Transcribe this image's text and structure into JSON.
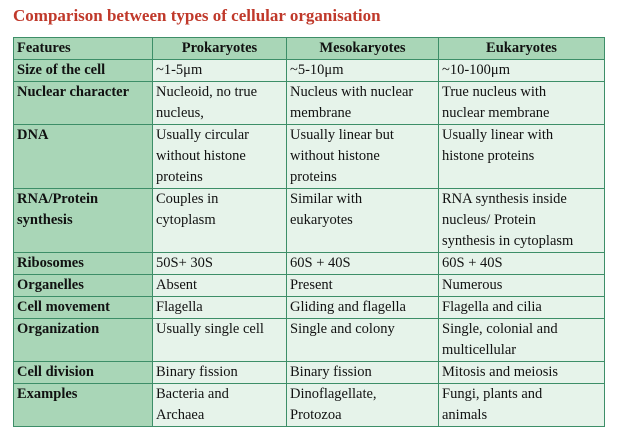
{
  "title": "Comparison between types of cellular organisation",
  "table": {
    "headers": [
      "Features",
      "Prokaryotes",
      "Mesokaryotes",
      "Eukaryotes"
    ],
    "rows": [
      {
        "feature": "Size of the cell",
        "prokaryotes": [
          "~1-5μm"
        ],
        "mesokaryotes": [
          "~5-10μm"
        ],
        "eukaryotes": [
          "~10-100μm"
        ]
      },
      {
        "feature": "Nuclear character",
        "prokaryotes": [
          "Nucleoid, no true",
          "nucleus,"
        ],
        "mesokaryotes": [
          "Nucleus with nuclear",
          "membrane"
        ],
        "eukaryotes": [
          "True nucleus with",
          "nuclear membrane"
        ]
      },
      {
        "feature": "DNA",
        "prokaryotes": [
          "Usually circular",
          "without histone",
          "proteins"
        ],
        "mesokaryotes": [
          "Usually linear but",
          "without histone",
          "proteins"
        ],
        "eukaryotes": [
          "Usually linear with",
          "histone proteins"
        ]
      },
      {
        "feature": [
          "RNA/Protein",
          "synthesis"
        ],
        "prokaryotes": [
          "Couples in",
          "cytoplasm"
        ],
        "mesokaryotes": [
          "Similar with",
          "eukaryotes"
        ],
        "eukaryotes": [
          "RNA synthesis inside",
          "nucleus/ Protein",
          "synthesis in cytoplasm"
        ]
      },
      {
        "feature": "Ribosomes",
        "prokaryotes": [
          "50S+ 30S"
        ],
        "mesokaryotes": [
          "60S + 40S"
        ],
        "eukaryotes": [
          "60S + 40S"
        ]
      },
      {
        "feature": "Organelles",
        "prokaryotes": [
          "Absent"
        ],
        "mesokaryotes": [
          "Present"
        ],
        "eukaryotes": [
          "Numerous"
        ]
      },
      {
        "feature": "Cell movement",
        "prokaryotes": [
          "Flagella"
        ],
        "mesokaryotes": [
          "Gliding and flagella"
        ],
        "eukaryotes": [
          "Flagella and cilia"
        ]
      },
      {
        "feature": "Organization",
        "prokaryotes": [
          "Usually single cell"
        ],
        "mesokaryotes": [
          "Single and colony"
        ],
        "eukaryotes": [
          "Single, colonial and",
          "multicellular"
        ]
      },
      {
        "feature": "Cell division",
        "prokaryotes": [
          "Binary fission"
        ],
        "mesokaryotes": [
          "Binary fission"
        ],
        "eukaryotes": [
          "Mitosis and meiosis"
        ]
      },
      {
        "feature": "Examples",
        "prokaryotes": [
          "Bacteria and",
          "Archaea"
        ],
        "mesokaryotes": [
          "Dinoflagellate,",
          "Protozoa"
        ],
        "eukaryotes": [
          "Fungi, plants and",
          "animals"
        ]
      }
    ]
  },
  "colors": {
    "title": "#c0392b",
    "header_bg": "#a9d6b7",
    "cell_bg": "#e6f3ea",
    "border": "#3d8e68"
  }
}
